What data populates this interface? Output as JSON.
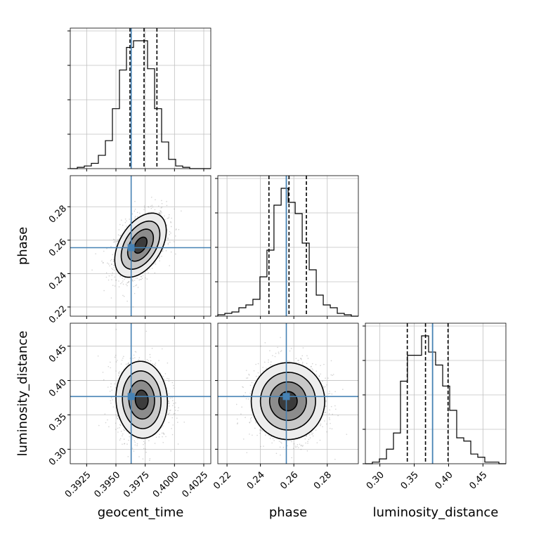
{
  "chart_data": {
    "type": "corner",
    "parameters": [
      "geocent_time",
      "phase",
      "luminosity_distance"
    ],
    "axis_labels": {
      "geocent_time": "geocent_time",
      "phase": "phase",
      "luminosity_distance": "luminosity_distance"
    },
    "ranges": {
      "geocent_time": [
        0.3911,
        0.4031
      ],
      "phase": [
        0.2145,
        0.2986
      ],
      "luminosity_distance": [
        0.2789,
        0.4834
      ]
    },
    "ticks": {
      "geocent_time": [
        {
          "v": 0.3925,
          "label": "0.3925"
        },
        {
          "v": 0.395,
          "label": "0.3950"
        },
        {
          "v": 0.3975,
          "label": "0.3975"
        },
        {
          "v": 0.4,
          "label": "0.4000"
        },
        {
          "v": 0.4025,
          "label": "0.4025"
        }
      ],
      "phase": [
        {
          "v": 0.22,
          "label": "0.22"
        },
        {
          "v": 0.24,
          "label": "0.24"
        },
        {
          "v": 0.26,
          "label": "0.26"
        },
        {
          "v": 0.28,
          "label": "0.28"
        }
      ],
      "luminosity_distance": [
        {
          "v": 0.3,
          "label": "0.30"
        },
        {
          "v": 0.35,
          "label": "0.35"
        },
        {
          "v": 0.4,
          "label": "0.40"
        },
        {
          "v": 0.45,
          "label": "0.45"
        }
      ]
    },
    "truths": {
      "geocent_time": 0.3963,
      "phase": 0.2555,
      "luminosity_distance": 0.3767
    },
    "quantiles": {
      "geocent_time": [
        0.3962,
        0.3974,
        0.3985
      ],
      "phase": [
        0.2451,
        0.2571,
        0.2675
      ],
      "luminosity_distance": [
        0.3399,
        0.3664,
        0.3992
      ]
    },
    "histograms": {
      "geocent_time": {
        "edges": [
          0.3911,
          0.3917,
          0.3923,
          0.3929,
          0.3935,
          0.3941,
          0.3947,
          0.3953,
          0.3959,
          0.3965,
          0.3971,
          0.3977,
          0.3983,
          0.3989,
          0.3995,
          0.4001,
          0.4007,
          0.4013,
          0.4019,
          0.4025,
          0.4031
        ],
        "counts": [
          0,
          1,
          2,
          4,
          10,
          21,
          45,
          74,
          91,
          96,
          96,
          75,
          45,
          20,
          7,
          2,
          1,
          0,
          0,
          0
        ]
      },
      "phase": {
        "edges": [
          0.2145,
          0.2187,
          0.2229,
          0.2271,
          0.2313,
          0.2355,
          0.2397,
          0.2439,
          0.2481,
          0.2524,
          0.2566,
          0.2608,
          0.265,
          0.2692,
          0.2734,
          0.2776,
          0.2818,
          0.286,
          0.2902,
          0.2944,
          0.2986
        ],
        "counts": [
          1,
          2,
          3,
          6,
          8,
          12,
          28,
          47,
          79,
          91,
          81,
          73,
          52,
          33,
          15,
          8,
          6,
          2,
          1,
          0
        ]
      },
      "luminosity_distance": {
        "edges": [
          0.2789,
          0.2891,
          0.2993,
          0.3096,
          0.3198,
          0.33,
          0.3402,
          0.3505,
          0.3607,
          0.3709,
          0.3811,
          0.3914,
          0.4016,
          0.4118,
          0.4221,
          0.4323,
          0.4425,
          0.4527,
          0.463,
          0.4732,
          0.4834
        ],
        "counts": [
          0,
          1,
          3,
          9,
          19,
          51,
          67,
          67,
          79,
          69,
          61,
          48,
          33,
          16,
          14,
          6,
          4,
          1,
          1,
          0
        ]
      }
    },
    "pairs": [
      {
        "x": "geocent_time",
        "y": "phase",
        "center": [
          0.3971,
          0.257
        ],
        "sigma": [
          0.0011,
          0.0096
        ],
        "rho": 0.45
      },
      {
        "x": "geocent_time",
        "y": "luminosity_distance",
        "center": [
          0.3972,
          0.372
        ],
        "sigma": [
          0.0011,
          0.028
        ],
        "rho": -0.05
      },
      {
        "x": "phase",
        "y": "luminosity_distance",
        "center": [
          0.2565,
          0.37
        ],
        "sigma": [
          0.011,
          0.028
        ],
        "rho": 0.0
      }
    ],
    "contour_levels": [
      0.5,
      1.0,
      1.5,
      2.0
    ],
    "colors": {
      "truth": "#4682b4",
      "lines": "#000000",
      "grid": "#c0c0c0",
      "points": "#808080"
    },
    "grid": true
  }
}
